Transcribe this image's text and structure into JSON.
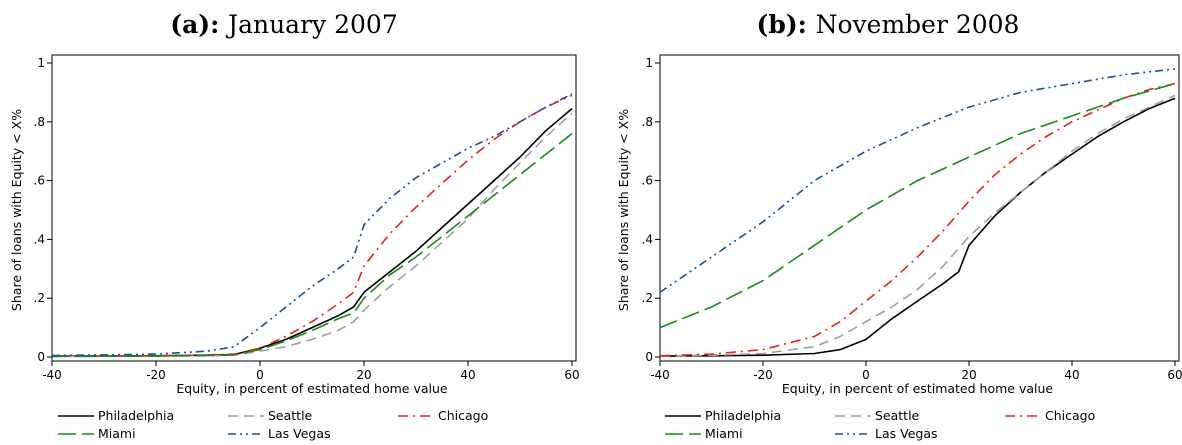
{
  "chart_data": [
    {
      "type": "line",
      "title_prefix": "(a):",
      "title": "January 2007",
      "xlabel": "Equity, in percent of estimated home value",
      "ylabel": "Share of loans with Equity < X%",
      "xlim": [
        -40,
        60
      ],
      "ylim": [
        0,
        1
      ],
      "xticks": [
        -40,
        -20,
        0,
        20,
        40,
        60
      ],
      "xtick_labels": [
        "-40",
        "-20",
        "0",
        "20",
        "40",
        "60"
      ],
      "yticks": [
        0,
        0.2,
        0.4,
        0.6,
        0.8,
        1
      ],
      "ytick_labels": [
        "0",
        ".2",
        ".4",
        ".6",
        ".8",
        "1"
      ],
      "grid": false,
      "legend_position": "bottom",
      "series": [
        {
          "name": "Philadelphia",
          "color": "#000000",
          "dash": "solid",
          "x": [
            -40,
            -20,
            -10,
            -5,
            0,
            5,
            10,
            15,
            18,
            20,
            25,
            30,
            35,
            40,
            45,
            50,
            55,
            60
          ],
          "y": [
            0.003,
            0.004,
            0.006,
            0.008,
            0.03,
            0.06,
            0.1,
            0.14,
            0.17,
            0.22,
            0.29,
            0.36,
            0.44,
            0.52,
            0.6,
            0.68,
            0.77,
            0.845
          ]
        },
        {
          "name": "Seattle",
          "color": "#a0a0a0",
          "dash": "dash",
          "x": [
            -40,
            -20,
            -10,
            -5,
            0,
            5,
            10,
            15,
            18,
            20,
            25,
            30,
            35,
            40,
            45,
            50,
            55,
            60
          ],
          "y": [
            0.002,
            0.003,
            0.004,
            0.006,
            0.02,
            0.035,
            0.06,
            0.09,
            0.12,
            0.16,
            0.24,
            0.31,
            0.39,
            0.47,
            0.57,
            0.66,
            0.75,
            0.83
          ]
        },
        {
          "name": "Chicago",
          "color": "#e8211c",
          "dash": "dashdot",
          "x": [
            -40,
            -20,
            -10,
            -5,
            0,
            5,
            10,
            15,
            18,
            20,
            25,
            30,
            35,
            40,
            45,
            50,
            55,
            60
          ],
          "y": [
            0.003,
            0.004,
            0.007,
            0.01,
            0.03,
            0.07,
            0.12,
            0.18,
            0.22,
            0.31,
            0.42,
            0.51,
            0.59,
            0.67,
            0.74,
            0.8,
            0.85,
            0.89
          ]
        },
        {
          "name": "Miami",
          "color": "#1a8a1a",
          "dash": "longdash",
          "x": [
            -40,
            -20,
            -10,
            -5,
            0,
            5,
            10,
            15,
            18,
            20,
            25,
            30,
            35,
            40,
            45,
            50,
            55,
            60
          ],
          "y": [
            0.002,
            0.003,
            0.005,
            0.007,
            0.025,
            0.055,
            0.09,
            0.13,
            0.15,
            0.2,
            0.28,
            0.34,
            0.41,
            0.48,
            0.55,
            0.62,
            0.69,
            0.76
          ]
        },
        {
          "name": "Las Vegas",
          "color": "#1f4e8c",
          "dash": "dashdotdot",
          "x": [
            -40,
            -30,
            -20,
            -10,
            -5,
            0,
            5,
            10,
            15,
            18,
            20,
            25,
            30,
            35,
            40,
            45,
            50,
            55,
            60
          ],
          "y": [
            0.005,
            0.007,
            0.01,
            0.02,
            0.035,
            0.1,
            0.17,
            0.24,
            0.3,
            0.34,
            0.45,
            0.54,
            0.61,
            0.66,
            0.71,
            0.75,
            0.8,
            0.85,
            0.895
          ]
        }
      ]
    },
    {
      "type": "line",
      "title_prefix": "(b):",
      "title": "November 2008",
      "xlabel": "Equity, in percent of estimated home value",
      "ylabel": "Share of loans with Equity < X%",
      "xlim": [
        -40,
        60
      ],
      "ylim": [
        0,
        1
      ],
      "xticks": [
        -40,
        -20,
        0,
        20,
        40,
        60
      ],
      "xtick_labels": [
        "-40",
        "-20",
        "0",
        "20",
        "40",
        "60"
      ],
      "yticks": [
        0,
        0.2,
        0.4,
        0.6,
        0.8,
        1
      ],
      "ytick_labels": [
        "0",
        ".2",
        ".4",
        ".6",
        ".8",
        "1"
      ],
      "grid": false,
      "legend_position": "bottom",
      "series": [
        {
          "name": "Philadelphia",
          "color": "#000000",
          "dash": "solid",
          "x": [
            -40,
            -30,
            -20,
            -10,
            -5,
            0,
            5,
            10,
            15,
            18,
            20,
            25,
            30,
            35,
            40,
            45,
            50,
            55,
            60
          ],
          "y": [
            0.003,
            0.004,
            0.006,
            0.012,
            0.025,
            0.06,
            0.13,
            0.19,
            0.25,
            0.29,
            0.38,
            0.48,
            0.56,
            0.63,
            0.69,
            0.75,
            0.8,
            0.845,
            0.88
          ]
        },
        {
          "name": "Seattle",
          "color": "#a0a0a0",
          "dash": "dash",
          "x": [
            -40,
            -30,
            -20,
            -10,
            -5,
            0,
            5,
            10,
            15,
            20,
            25,
            30,
            35,
            40,
            45,
            50,
            55,
            60
          ],
          "y": [
            0.003,
            0.006,
            0.012,
            0.035,
            0.07,
            0.12,
            0.17,
            0.23,
            0.31,
            0.41,
            0.49,
            0.56,
            0.63,
            0.7,
            0.76,
            0.81,
            0.85,
            0.89
          ]
        },
        {
          "name": "Chicago",
          "color": "#e8211c",
          "dash": "dashdot",
          "x": [
            -40,
            -30,
            -20,
            -10,
            -5,
            0,
            5,
            10,
            15,
            20,
            25,
            30,
            35,
            40,
            45,
            50,
            55,
            60
          ],
          "y": [
            0.004,
            0.01,
            0.025,
            0.07,
            0.12,
            0.19,
            0.26,
            0.34,
            0.43,
            0.53,
            0.62,
            0.69,
            0.75,
            0.8,
            0.84,
            0.88,
            0.91,
            0.93
          ]
        },
        {
          "name": "Miami",
          "color": "#1a8a1a",
          "dash": "longdash",
          "x": [
            -40,
            -30,
            -20,
            -10,
            0,
            10,
            20,
            30,
            40,
            50,
            60
          ],
          "y": [
            0.1,
            0.17,
            0.26,
            0.38,
            0.5,
            0.6,
            0.68,
            0.76,
            0.82,
            0.88,
            0.93
          ]
        },
        {
          "name": "Las Vegas",
          "color": "#1f4e8c",
          "dash": "dashdotdot",
          "x": [
            -40,
            -30,
            -20,
            -10,
            0,
            10,
            20,
            30,
            40,
            50,
            60
          ],
          "y": [
            0.22,
            0.34,
            0.46,
            0.6,
            0.7,
            0.78,
            0.85,
            0.9,
            0.93,
            0.96,
            0.98
          ]
        }
      ]
    }
  ]
}
